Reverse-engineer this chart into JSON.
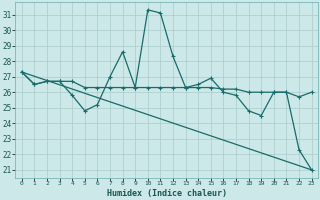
{
  "title": "",
  "xlabel": "Humidex (Indice chaleur)",
  "background_color": "#cce8e8",
  "grid_color": "#aacccc",
  "line_color": "#1a6b6b",
  "xlim": [
    -0.5,
    23.5
  ],
  "ylim": [
    20.5,
    31.8
  ],
  "yticks": [
    21,
    22,
    23,
    24,
    25,
    26,
    27,
    28,
    29,
    30,
    31
  ],
  "xticks": [
    0,
    1,
    2,
    3,
    4,
    5,
    6,
    7,
    8,
    9,
    10,
    11,
    12,
    13,
    14,
    15,
    16,
    17,
    18,
    19,
    20,
    21,
    22,
    23
  ],
  "line1_x": [
    0,
    1,
    2,
    3,
    4,
    5,
    6,
    7,
    8,
    9,
    10,
    11,
    12,
    13,
    14,
    15,
    16,
    17,
    18,
    19,
    20,
    21,
    22,
    23
  ],
  "line1_y": [
    27.3,
    26.5,
    26.7,
    26.7,
    25.8,
    24.8,
    25.2,
    27.0,
    28.6,
    26.3,
    31.3,
    31.1,
    28.3,
    26.3,
    26.5,
    26.9,
    26.0,
    25.8,
    24.8,
    24.5,
    26.0,
    26.0,
    22.3,
    21.0
  ],
  "line2_x": [
    0,
    1,
    2,
    3,
    4,
    5,
    6,
    7,
    8,
    9,
    10,
    11,
    12,
    13,
    14,
    15,
    16,
    17,
    18,
    19,
    20,
    21,
    22,
    23
  ],
  "line2_y": [
    27.3,
    26.5,
    26.7,
    26.7,
    26.7,
    26.3,
    26.3,
    26.3,
    26.3,
    26.3,
    26.3,
    26.3,
    26.3,
    26.3,
    26.3,
    26.3,
    26.2,
    26.2,
    26.0,
    26.0,
    26.0,
    26.0,
    25.7,
    26.0
  ],
  "line3_x": [
    0,
    23
  ],
  "line3_y": [
    27.3,
    21.0
  ]
}
